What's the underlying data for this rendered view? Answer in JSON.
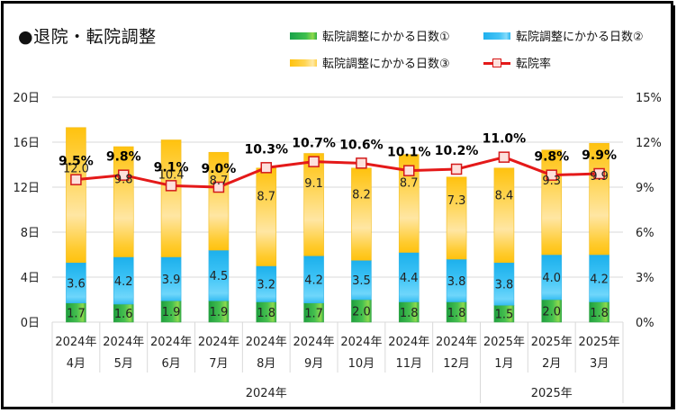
{
  "title": "●退院・転院調整",
  "legend": {
    "s1": "転院調整にかかる日数①",
    "s2": "転院調整にかかる日数②",
    "s3": "転院調整にかかる日数③",
    "line": "転院率"
  },
  "colors": {
    "series1": "#2eae44",
    "series2": "#3cc0f4",
    "series3": "#ffc61f",
    "line": "#e41919",
    "marker_fill": "#fde0dc",
    "grid": "#d9d9d9"
  },
  "chart_data": {
    "type": "bar",
    "stacked": true,
    "title": "●退院・転院調整",
    "categories": [
      {
        "line1": "2024年",
        "line2": "4月"
      },
      {
        "line1": "2024年",
        "line2": "5月"
      },
      {
        "line1": "2024年",
        "line2": "6月"
      },
      {
        "line1": "2024年",
        "line2": "7月"
      },
      {
        "line1": "2024年",
        "line2": "8月"
      },
      {
        "line1": "2024年",
        "line2": "9月"
      },
      {
        "line1": "2024年",
        "line2": "10月"
      },
      {
        "line1": "2024年",
        "line2": "11月"
      },
      {
        "line1": "2024年",
        "line2": "12月"
      },
      {
        "line1": "2025年",
        "line2": "1月"
      },
      {
        "line1": "2025年",
        "line2": "2月"
      },
      {
        "line1": "2025年",
        "line2": "3月"
      }
    ],
    "groups": [
      {
        "label": "2024年",
        "count": 9
      },
      {
        "label": "2025年",
        "count": 3
      }
    ],
    "series": [
      {
        "name": "転院調整にかかる日数①",
        "axis": "left",
        "values": [
          1.7,
          1.6,
          1.9,
          1.9,
          1.8,
          1.7,
          2.0,
          1.8,
          1.8,
          1.5,
          2.0,
          1.8
        ]
      },
      {
        "name": "転院調整にかかる日数②",
        "axis": "left",
        "values": [
          3.6,
          4.2,
          3.9,
          4.5,
          3.2,
          4.2,
          3.5,
          4.4,
          3.8,
          3.8,
          4.0,
          4.2
        ]
      },
      {
        "name": "転院調整にかかる日数③",
        "axis": "left",
        "values": [
          12.0,
          9.8,
          10.4,
          8.7,
          8.7,
          9.1,
          8.2,
          8.7,
          7.3,
          8.4,
          9.3,
          9.9
        ]
      },
      {
        "name": "転院率",
        "type": "line",
        "axis": "right",
        "values": [
          9.5,
          9.8,
          9.1,
          9.0,
          10.3,
          10.7,
          10.6,
          10.1,
          10.2,
          11.0,
          9.8,
          9.9
        ],
        "unit": "%"
      }
    ],
    "y_left": {
      "min": 0,
      "max": 20,
      "ticks": [
        0,
        4,
        8,
        12,
        16,
        20
      ],
      "suffix": "日",
      "tick_labels": [
        "0日",
        "4日",
        "8日",
        "12日",
        "16日",
        "20日"
      ]
    },
    "y_right": {
      "min": 0,
      "max": 15,
      "ticks": [
        0,
        3,
        6,
        9,
        12,
        15
      ],
      "suffix": "%",
      "tick_labels": [
        "0%",
        "3%",
        "6%",
        "9%",
        "12%",
        "15%"
      ]
    },
    "grid": true,
    "legend_position": "top-right"
  }
}
